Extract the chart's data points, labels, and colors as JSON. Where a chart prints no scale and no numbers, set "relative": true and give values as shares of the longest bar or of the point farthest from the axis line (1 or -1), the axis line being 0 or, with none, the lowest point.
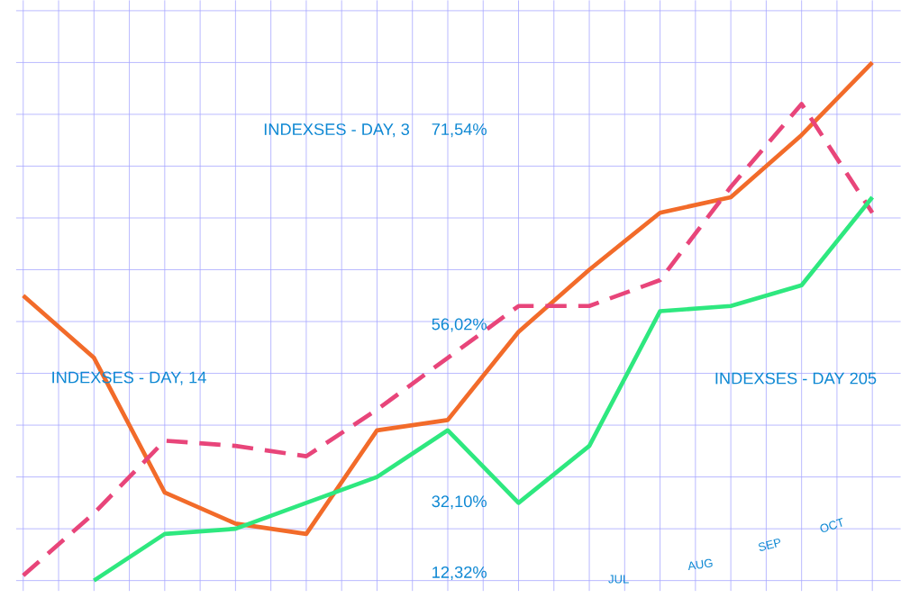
{
  "chart_data": {
    "type": "line",
    "relative": true,
    "grid": true,
    "marker": "none",
    "categories": [
      null,
      null,
      null,
      null,
      null,
      null,
      null,
      null,
      null,
      null,
      null,
      null,
      null
    ],
    "series": [
      {
        "color": "#f26b2a",
        "line_style": "solid",
        "values": [
          0.55,
          0.43,
          0.17,
          0.11,
          0.09,
          0.29,
          0.31,
          0.48,
          0.6,
          0.71,
          0.74,
          0.86,
          1
        ]
      },
      {
        "color": "#e8457a",
        "line_style": "dashed",
        "values": [
          0.01,
          0.13,
          0.27,
          0.26,
          0.24,
          0.33,
          0.43,
          0.53,
          0.53,
          0.58,
          0.76,
          0.92,
          0.71
        ]
      },
      {
        "color": "#2ee87f",
        "line_style": "solid",
        "values": [
          null,
          0,
          0.09,
          0.1,
          0.15,
          0.2,
          0.29,
          0.15,
          0.26,
          0.52,
          0.53,
          0.57,
          0.74
        ]
      }
    ],
    "annotations": [
      "INDEXSES - DAY, 3",
      "INDEXSES - DAY, 14",
      "INDEXSES - DAY 205",
      "71,54%",
      "56,02%",
      "32,10%",
      "12,32%",
      "JUL",
      "AUG",
      "SEP",
      "OCT"
    ]
  }
}
